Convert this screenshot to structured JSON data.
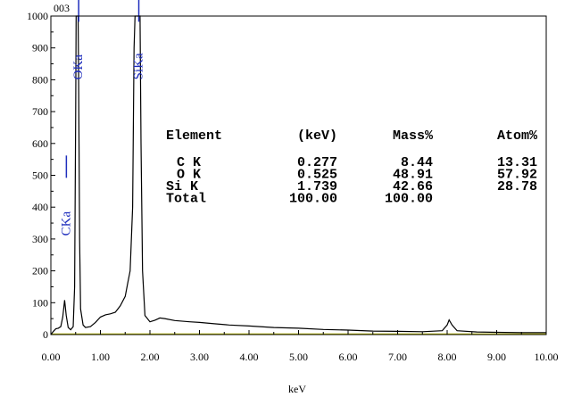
{
  "chart_data": {
    "type": "line",
    "title": "003",
    "xlabel": "keV",
    "ylabel": "",
    "xlim": [
      0,
      10
    ],
    "ylim": [
      0,
      1000
    ],
    "x_ticks": [
      "0.00",
      "1.00",
      "2.00",
      "3.00",
      "4.00",
      "5.00",
      "6.00",
      "7.00",
      "8.00",
      "9.00",
      "10.00"
    ],
    "y_ticks": [
      "0",
      "100",
      "200",
      "300",
      "400",
      "500",
      "600",
      "700",
      "800",
      "900",
      "1000"
    ],
    "series_color": "#000000",
    "baseline_color": "#c8c800",
    "peak_label_color": "#1f2ebd",
    "peak_labels": [
      {
        "text": "CKa",
        "x": 0.277,
        "label_y": 310
      },
      {
        "text": "OKa",
        "x": 0.525,
        "label_y": 800
      },
      {
        "text": "SiKa",
        "x": 1.739,
        "label_y": 800
      }
    ],
    "spectrum": [
      [
        0.0,
        0
      ],
      [
        0.05,
        10
      ],
      [
        0.1,
        18
      ],
      [
        0.15,
        20
      ],
      [
        0.2,
        25
      ],
      [
        0.24,
        55
      ],
      [
        0.277,
        108
      ],
      [
        0.31,
        60
      ],
      [
        0.35,
        22
      ],
      [
        0.4,
        15
      ],
      [
        0.45,
        25
      ],
      [
        0.48,
        150
      ],
      [
        0.5,
        700
      ],
      [
        0.51,
        1000
      ],
      [
        0.55,
        1000
      ],
      [
        0.56,
        800
      ],
      [
        0.58,
        300
      ],
      [
        0.6,
        80
      ],
      [
        0.65,
        30
      ],
      [
        0.7,
        22
      ],
      [
        0.8,
        25
      ],
      [
        0.9,
        38
      ],
      [
        1.0,
        55
      ],
      [
        1.1,
        62
      ],
      [
        1.2,
        65
      ],
      [
        1.3,
        70
      ],
      [
        1.4,
        90
      ],
      [
        1.5,
        120
      ],
      [
        1.55,
        160
      ],
      [
        1.6,
        200
      ],
      [
        1.65,
        400
      ],
      [
        1.68,
        900
      ],
      [
        1.7,
        1000
      ],
      [
        1.8,
        1000
      ],
      [
        1.82,
        600
      ],
      [
        1.85,
        200
      ],
      [
        1.9,
        60
      ],
      [
        2.0,
        40
      ],
      [
        2.1,
        45
      ],
      [
        2.2,
        52
      ],
      [
        2.3,
        50
      ],
      [
        2.5,
        44
      ],
      [
        2.8,
        40
      ],
      [
        3.0,
        38
      ],
      [
        3.3,
        34
      ],
      [
        3.6,
        30
      ],
      [
        4.0,
        27
      ],
      [
        4.5,
        22
      ],
      [
        5.0,
        20
      ],
      [
        5.5,
        16
      ],
      [
        6.0,
        14
      ],
      [
        6.5,
        11
      ],
      [
        7.0,
        10
      ],
      [
        7.5,
        9
      ],
      [
        7.9,
        12
      ],
      [
        8.0,
        30
      ],
      [
        8.04,
        46
      ],
      [
        8.1,
        30
      ],
      [
        8.2,
        12
      ],
      [
        8.6,
        8
      ],
      [
        9.0,
        7
      ],
      [
        9.5,
        6
      ],
      [
        10.0,
        6
      ]
    ],
    "table": {
      "headers": [
        "Element",
        "(keV)",
        "Mass%",
        "Atom%"
      ],
      "rows": [
        [
          "C K",
          "0.277",
          "8.44",
          "13.31"
        ],
        [
          "O K",
          "0.525",
          "48.91",
          "57.92"
        ],
        [
          "Si K",
          "1.739",
          "42.66",
          "28.78"
        ],
        [
          "Total",
          "100.00",
          "100.00",
          ""
        ]
      ]
    }
  }
}
